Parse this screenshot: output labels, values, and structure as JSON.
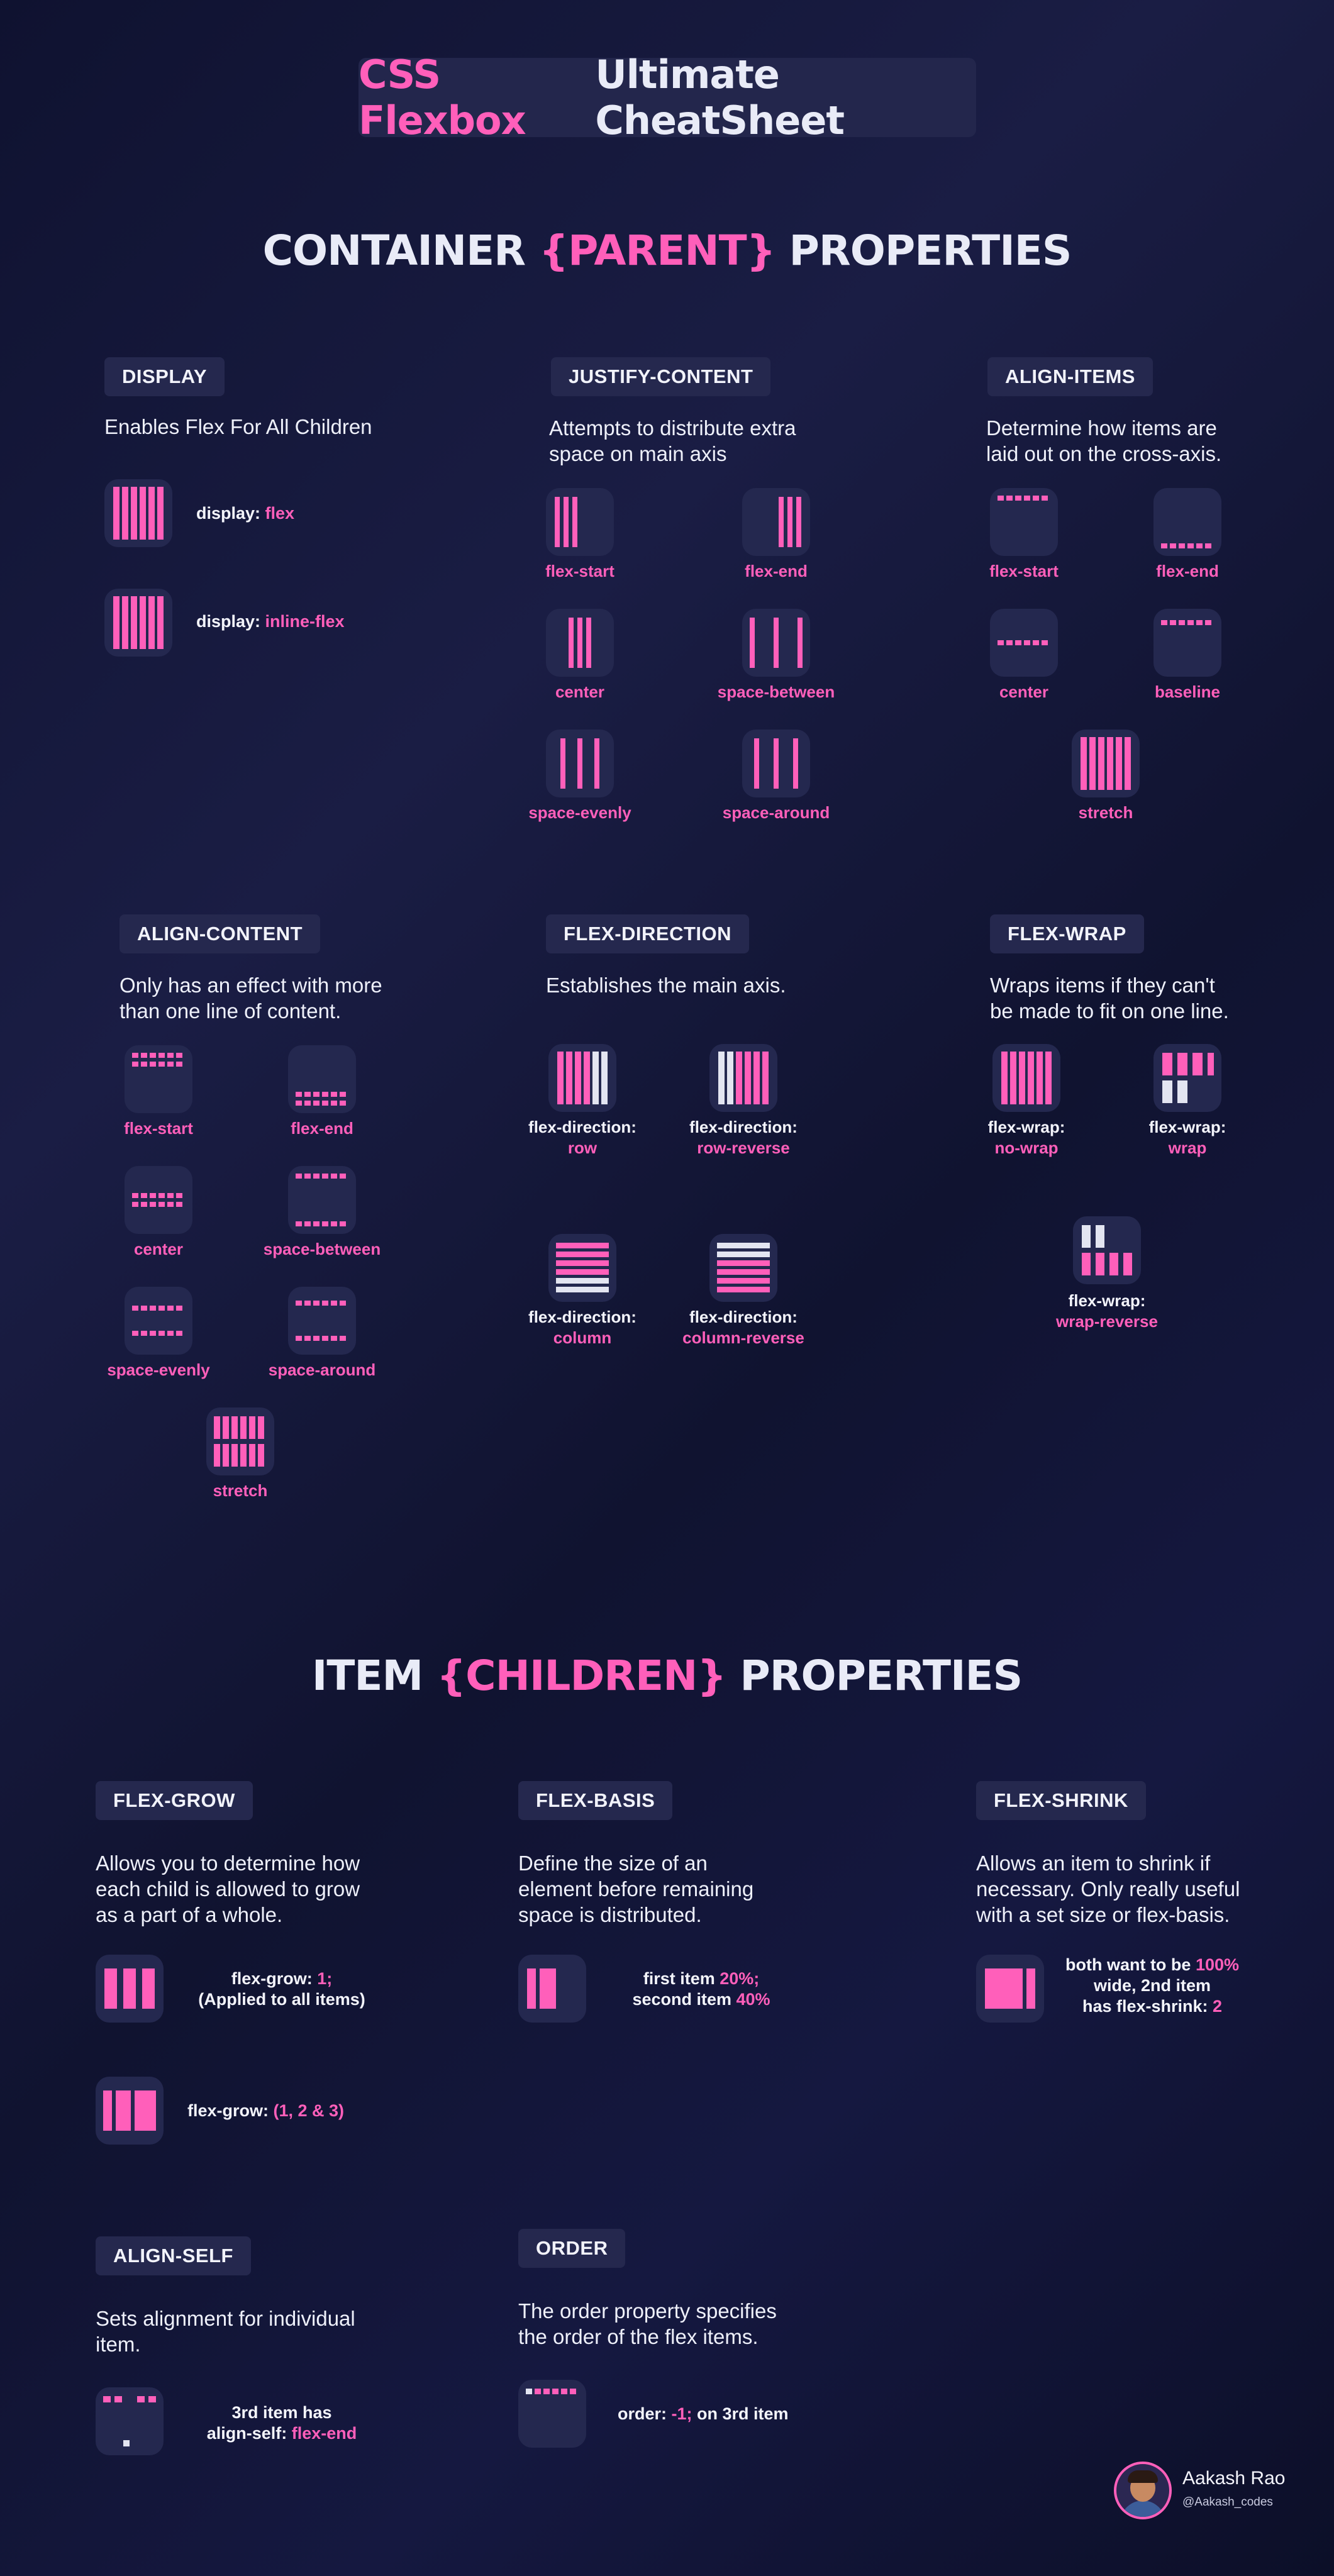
{
  "header": {
    "title_pink": "CSS Flexbox",
    "title_white": "Ultimate CheatSheet"
  },
  "container_section": {
    "pre": "CONTAINER ",
    "highlight": "{PARENT}",
    "post": " PROPERTIES"
  },
  "display": {
    "tag": "DISPLAY",
    "desc": [
      "Enables Flex For All Children"
    ],
    "items": [
      {
        "prefix": "display: ",
        "value": "flex"
      },
      {
        "prefix": "display: ",
        "value": "inline-flex"
      }
    ]
  },
  "justify_content": {
    "tag": "JUSTIFY-CONTENT",
    "desc": [
      "Attempts to distribute extra",
      "space on main axis"
    ],
    "items": [
      "flex-start",
      "flex-end",
      "center",
      "space-between",
      "space-evenly",
      "space-around"
    ]
  },
  "align_items": {
    "tag": "ALIGN-ITEMS",
    "desc": [
      "Determine how items are",
      "laid out on the cross-axis."
    ],
    "items": [
      "flex-start",
      "flex-end",
      "center",
      "baseline",
      "stretch"
    ]
  },
  "align_content": {
    "tag": "ALIGN-CONTENT",
    "desc": [
      "Only has an effect with more",
      "than one line of content."
    ],
    "items": [
      "flex-start",
      "flex-end",
      "center",
      "space-between",
      "space-evenly",
      "space-around",
      "stretch"
    ]
  },
  "flex_direction": {
    "tag": "FLEX-DIRECTION",
    "desc": [
      "Establishes the main axis."
    ],
    "prefix": "flex-direction:",
    "items": [
      "row",
      "row-reverse",
      "column",
      "column-reverse"
    ]
  },
  "flex_wrap": {
    "tag": "FLEX-WRAP",
    "desc": [
      "Wraps items if they can't",
      "be made to fit on one line."
    ],
    "prefix": "flex-wrap:",
    "items": [
      "no-wrap",
      "wrap",
      "wrap-reverse"
    ]
  },
  "item_section": {
    "pre": "ITEM ",
    "highlight": "{CHILDREN}",
    "post": " PROPERTIES"
  },
  "flex_grow": {
    "tag": "FLEX-GROW",
    "desc": [
      "Allows you to determine how",
      "each child is allowed to grow",
      "as a part of a whole."
    ],
    "ex1": {
      "prefix": "flex-grow: ",
      "value": "1;",
      "line2": "(Applied to all items)"
    },
    "ex2": {
      "prefix": "flex-grow: ",
      "value": "(1, 2 & 3)"
    }
  },
  "flex_basis": {
    "tag": "FLEX-BASIS",
    "desc": [
      "Define the size of an",
      "element before remaining",
      "space is distributed."
    ],
    "ex": {
      "l1_prefix": "first item ",
      "l1_value": "20%;",
      "l2_prefix": "second item ",
      "l2_value": "40%"
    }
  },
  "flex_shrink": {
    "tag": "FLEX-SHRINK",
    "desc": [
      "Allows an item to shrink if",
      "necessary. Only really useful",
      "with a set size or flex-basis."
    ],
    "ex": {
      "l1_prefix": "both want to be ",
      "l1_value": "100%",
      "l2": "wide, 2nd item",
      "l3_prefix": "has flex-shrink: ",
      "l3_value": "2"
    }
  },
  "align_self": {
    "tag": "ALIGN-SELF",
    "desc": [
      "Sets alignment for individual",
      "item."
    ],
    "ex": {
      "l1": "3rd item has",
      "l2_prefix": "align-self: ",
      "l2_value": "flex-end"
    }
  },
  "order": {
    "tag": "ORDER",
    "desc": [
      "The order property specifies",
      "the order of the flex items."
    ],
    "ex": {
      "prefix": "order: ",
      "value": "-1;",
      "suffix": " on 3rd item"
    }
  },
  "author": {
    "name": "Aakash Rao",
    "handle": "@Aakash_codes"
  },
  "colors": {
    "accent": "#ff5fba",
    "tag_bg": "#25284e",
    "box_bg": "#24284f",
    "page_bg": "#12153a"
  }
}
